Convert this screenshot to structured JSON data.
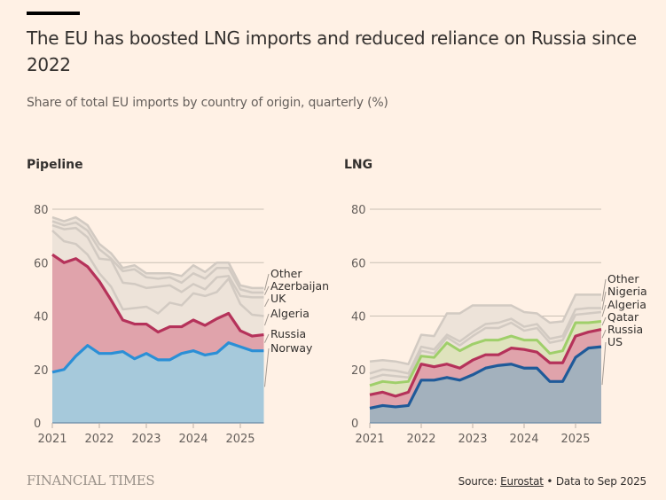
{
  "header": {
    "title": "The EU has boosted LNG imports and reduced reliance on Russia since 2022",
    "subtitle": "Share of total EU imports by country of origin, quarterly (%)"
  },
  "footer": {
    "logo": "FINANCIAL TIMES",
    "source_prefix": "Source: ",
    "source_link": "Eurostat",
    "source_suffix": " • Data to Sep 2025"
  },
  "colors": {
    "background": "#fff1e5",
    "pipeline_norway_line": "#2b8fd6",
    "pipeline_norway_fill": "#a6c9db",
    "russia_line": "#b5325a",
    "russia_fill": "#e0a3ab",
    "lng_us_line": "#1f5a99",
    "lng_us_fill": "#a3b1bd",
    "lng_qatar_line": "#9fcf6a",
    "lng_qatar_fill": "#dfe3bd",
    "other_line": "#d2cac2",
    "other_fill": "#ede3d9",
    "grid": "#c9bfb4",
    "axis": "#6a8aa6"
  },
  "chart_data": [
    {
      "type": "area",
      "stacked": true,
      "title": "Pipeline",
      "xlabel": "",
      "ylabel": "",
      "ylim": [
        0,
        80
      ],
      "yticks": [
        0,
        20,
        40,
        60,
        80
      ],
      "xticks": [
        "2021",
        "2022",
        "2023",
        "2024",
        "2025"
      ],
      "x": [
        "2021Q1",
        "2021Q2",
        "2021Q3",
        "2021Q4",
        "2022Q1",
        "2022Q2",
        "2022Q3",
        "2022Q4",
        "2023Q1",
        "2023Q2",
        "2023Q3",
        "2023Q4",
        "2024Q1",
        "2024Q2",
        "2024Q3",
        "2024Q4",
        "2025Q1",
        "2025Q2",
        "2025Q3"
      ],
      "grid": true,
      "legend": "right-end-labels",
      "series": [
        {
          "name": "Norway",
          "values": [
            19,
            20,
            25,
            29,
            26,
            26,
            26.7,
            24,
            26,
            23.6,
            23.6,
            26,
            27,
            25.4,
            26.2,
            30,
            28.5,
            27,
            27
          ]
        },
        {
          "name": "Russia",
          "values": [
            44,
            40,
            36.5,
            29.5,
            27,
            20,
            11.8,
            13,
            11,
            10.4,
            12.4,
            10,
            11.5,
            11.1,
            12.8,
            11,
            6,
            5.5,
            6
          ]
        },
        {
          "name": "Algeria",
          "values": [
            9,
            8,
            5.5,
            4.5,
            3,
            5,
            4,
            6,
            6.5,
            7,
            9,
            8,
            10,
            11,
            10,
            13,
            10,
            8,
            7
          ]
        },
        {
          "name": "UK",
          "values": [
            2,
            4.5,
            6,
            6.5,
            5.5,
            10,
            10,
            9,
            7,
            10,
            6.5,
            5,
            3.5,
            2.5,
            5.5,
            1,
            3,
            6.5,
            7
          ]
        },
        {
          "name": "Azerbaijan",
          "values": [
            1.5,
            1.5,
            2,
            2.5,
            3.5,
            0.5,
            4.3,
            5.5,
            4,
            3,
            3,
            3.5,
            4,
            4,
            3.5,
            3,
            2.5,
            1.8,
            1.8
          ]
        },
        {
          "name": "Other",
          "values": [
            1.5,
            1.5,
            2,
            2,
            2,
            2,
            1.2,
            1.5,
            1.5,
            2,
            1.5,
            2.5,
            3,
            2.5,
            2,
            2,
            1.5,
            1.7,
            1.7
          ]
        }
      ]
    },
    {
      "type": "area",
      "stacked": true,
      "title": "LNG",
      "xlabel": "",
      "ylabel": "",
      "ylim": [
        0,
        80
      ],
      "yticks": [
        0,
        20,
        40,
        60,
        80
      ],
      "xticks": [
        "2021",
        "2022",
        "2023",
        "2024",
        "2025"
      ],
      "x": [
        "2021Q1",
        "2021Q2",
        "2021Q3",
        "2021Q4",
        "2022Q1",
        "2022Q2",
        "2022Q3",
        "2022Q4",
        "2023Q1",
        "2023Q2",
        "2023Q3",
        "2023Q4",
        "2024Q1",
        "2024Q2",
        "2024Q3",
        "2024Q4",
        "2025Q1",
        "2025Q2",
        "2025Q3"
      ],
      "grid": true,
      "legend": "right-end-labels",
      "series": [
        {
          "name": "US",
          "values": [
            5.5,
            6.5,
            6,
            6.5,
            16,
            16,
            17,
            16,
            18,
            20.5,
            21.5,
            22,
            20.5,
            20.5,
            15.5,
            15.5,
            24.5,
            28,
            28.5
          ]
        },
        {
          "name": "Russia",
          "values": [
            5,
            5,
            4,
            5,
            6,
            5,
            5,
            4.5,
            5.5,
            5,
            4,
            6,
            7,
            6,
            7,
            7,
            8,
            6,
            6.5
          ]
        },
        {
          "name": "Qatar",
          "values": [
            3.5,
            4,
            5,
            4,
            3,
            3.5,
            8,
            6.5,
            6,
            5.5,
            5.5,
            4.5,
            3.5,
            4.5,
            3.5,
            4.5,
            5,
            3.5,
            3
          ]
        },
        {
          "name": "Algeria",
          "values": [
            2.5,
            2.5,
            2.5,
            1.5,
            2,
            1.5,
            2,
            2,
            3,
            4.5,
            4.5,
            5,
            3.5,
            4.5,
            4,
            4,
            3,
            3.5,
            3.5
          ]
        },
        {
          "name": "Nigeria",
          "values": [
            2,
            2,
            2,
            1.5,
            1.5,
            1.5,
            1,
            1.5,
            1.5,
            1.5,
            2,
            1.5,
            1.5,
            1.5,
            1.5,
            1.5,
            2,
            2,
            1.5
          ]
        },
        {
          "name": "Other",
          "values": [
            4.5,
            3.5,
            3.5,
            3.5,
            4.5,
            5,
            8,
            10.5,
            10,
            7,
            6.5,
            5,
            5.5,
            4,
            6,
            5.5,
            5.5,
            5,
            5
          ]
        }
      ]
    }
  ]
}
